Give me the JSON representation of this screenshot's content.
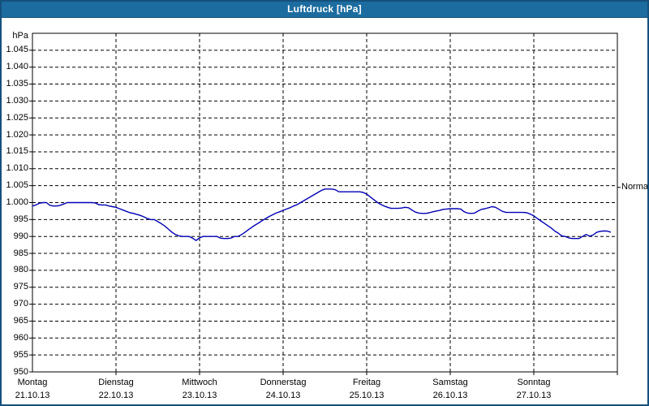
{
  "window": {
    "title": "Luftdruck [hPa]"
  },
  "colors": {
    "titlebar_bg": "#1c6ca0",
    "titlebar_text": "#ffffff",
    "window_border": "#14507c",
    "plot_frame": "#000000",
    "gridline": "#000000",
    "line": "#0000b4",
    "background": "#ffffff",
    "label_text": "#000000"
  },
  "chart_data": {
    "type": "line",
    "title": "Luftdruck [hPa]",
    "unit_label": "hPa",
    "grid": true,
    "legend_position": "none",
    "y_axis": {
      "min": 950,
      "max": 1050,
      "tick_step": 5,
      "tick_values": [
        1045,
        1040,
        1035,
        1030,
        1025,
        1020,
        1015,
        1010,
        1005,
        1000,
        995,
        990,
        985,
        980,
        975,
        970,
        965,
        960,
        955,
        950
      ],
      "tick_labels": [
        "1.045",
        "1.040",
        "1.035",
        "1.030",
        "1.025",
        "1.020",
        "1.015",
        "1.010",
        "1.005",
        "1.000",
        "995",
        "990",
        "985",
        "980",
        "975",
        "970",
        "965",
        "960",
        "955",
        "950"
      ]
    },
    "x_axis": {
      "samples_per_day": 24,
      "days": [
        {
          "name": "Montag",
          "date": "21.10.13"
        },
        {
          "name": "Dienstag",
          "date": "22.10.13"
        },
        {
          "name": "Mittwoch",
          "date": "23.10.13"
        },
        {
          "name": "Donnerstag",
          "date": "24.10.13"
        },
        {
          "name": "Freitag",
          "date": "25.10.13"
        },
        {
          "name": "Samstag",
          "date": "26.10.13"
        },
        {
          "name": "Sonntag",
          "date": "27.10.13"
        }
      ]
    },
    "annotation": {
      "label": "Normal",
      "value": 1004.5
    },
    "series": [
      {
        "name": "Luftdruck",
        "unit": "hPa",
        "values": [
          999.0,
          999.3,
          999.8,
          1000.0,
          1000.0,
          999.2,
          999.0,
          999.0,
          999.2,
          999.6,
          1000.0,
          1000.0,
          1000.0,
          1000.0,
          1000.0,
          1000.0,
          1000.0,
          1000.0,
          999.9,
          999.4,
          999.3,
          999.3,
          999.0,
          998.8,
          998.6,
          998.2,
          997.8,
          997.4,
          997.0,
          996.8,
          996.5,
          996.2,
          995.8,
          995.3,
          995.0,
          995.0,
          994.4,
          993.8,
          993.1,
          992.2,
          991.3,
          990.6,
          990.2,
          990.0,
          990.0,
          990.0,
          989.5,
          988.8,
          989.6,
          990.0,
          990.0,
          990.0,
          990.0,
          990.0,
          989.5,
          989.4,
          989.4,
          989.5,
          990.0,
          990.0,
          990.5,
          991.2,
          992.0,
          992.7,
          993.4,
          994.0,
          994.7,
          995.3,
          995.9,
          996.4,
          996.9,
          997.3,
          997.7,
          998.1,
          998.5,
          999.0,
          999.4,
          1000.0,
          1000.6,
          1001.2,
          1001.8,
          1002.4,
          1003.0,
          1003.6,
          1004.0,
          1004.0,
          1004.0,
          1003.8,
          1003.2,
          1003.2,
          1003.2,
          1003.2,
          1003.2,
          1003.2,
          1003.2,
          1003.0,
          1002.5,
          1001.7,
          1000.9,
          1000.1,
          999.5,
          999.0,
          998.6,
          998.3,
          998.3,
          998.3,
          998.4,
          998.6,
          998.5,
          997.8,
          997.2,
          996.9,
          996.8,
          996.8,
          997.0,
          997.3,
          997.5,
          997.7,
          998.0,
          998.1,
          998.2,
          998.2,
          998.2,
          998.1,
          997.3,
          996.9,
          996.8,
          996.9,
          997.5,
          998.0,
          998.2,
          998.5,
          998.8,
          998.6,
          998.0,
          997.4,
          997.1,
          997.1,
          997.1,
          997.1,
          997.1,
          997.1,
          997.0,
          996.6,
          996.1,
          995.3,
          994.6,
          993.9,
          993.2,
          992.5,
          991.6,
          991.0,
          990.2,
          990.0,
          989.6,
          989.4,
          989.4,
          989.4,
          990.0,
          990.6,
          990.1,
          990.4,
          991.2,
          991.5,
          991.6,
          991.6,
          991.3
        ]
      }
    ]
  }
}
